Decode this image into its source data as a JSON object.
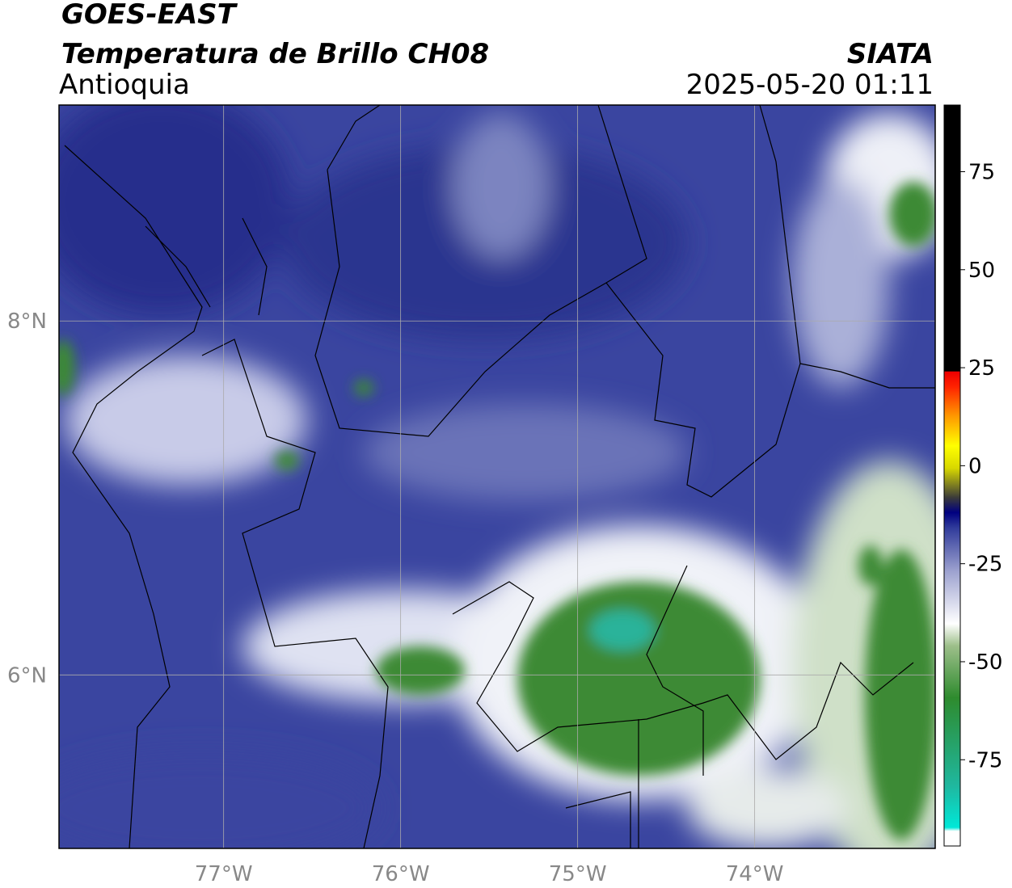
{
  "header": {
    "source": "GOES-EAST",
    "product": "Temperatura de Brillo CH08",
    "region": "Antioquia",
    "agency": "SIATA",
    "datetime": "2025-05-20 01:11"
  },
  "map": {
    "xlim": [
      -77.93,
      -72.98
    ],
    "ylim": [
      5.02,
      9.22
    ],
    "xticks": [
      {
        "value": -77,
        "label": "77°W"
      },
      {
        "value": -76,
        "label": "76°W"
      },
      {
        "value": -75,
        "label": "75°W"
      },
      {
        "value": -74,
        "label": "74°W"
      }
    ],
    "yticks": [
      {
        "value": 8,
        "label": "8°N"
      },
      {
        "value": 6,
        "label": "6°N"
      }
    ]
  },
  "colorbar": {
    "lim": [
      -97,
      92
    ],
    "ticks": [
      75,
      50,
      25,
      0,
      -25,
      -50,
      -75
    ]
  }
}
